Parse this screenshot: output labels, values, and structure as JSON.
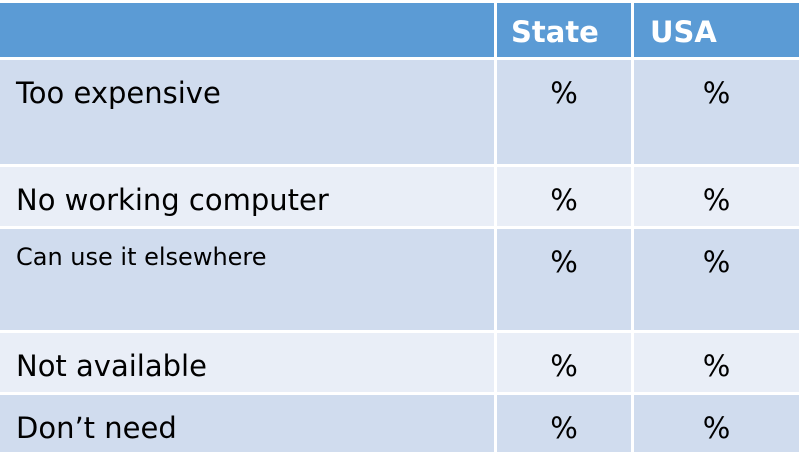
{
  "table": {
    "header": [
      "State",
      "USA"
    ],
    "rows": [
      {
        "label": "Too expensive",
        "values": [
          "%",
          "%"
        ]
      },
      {
        "label": "No working computer",
        "values": [
          "%",
          "%"
        ]
      },
      {
        "label": "Can use it elsewhere",
        "values": [
          "%",
          "%"
        ]
      },
      {
        "label": "Not available",
        "values": [
          "%",
          "%"
        ]
      },
      {
        "label": "Don’t need",
        "values": [
          "%",
          "%"
        ]
      }
    ]
  }
}
